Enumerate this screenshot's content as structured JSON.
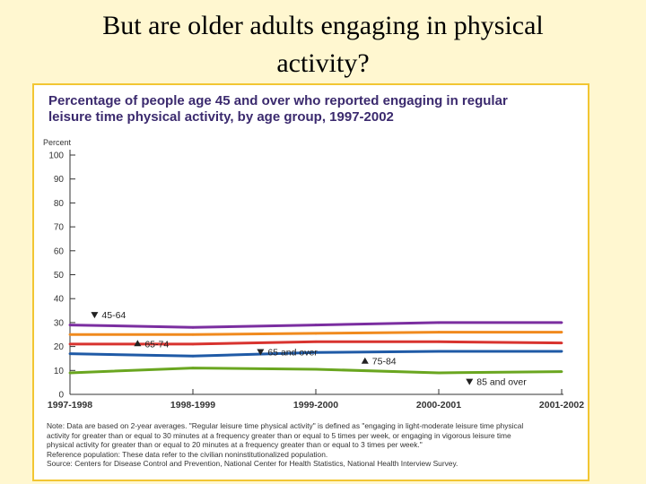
{
  "slide": {
    "title_line1": "But are older adults engaging in physical",
    "title_line2": "activity?"
  },
  "chart_data": {
    "type": "line",
    "title_line1": "Percentage of people age 45 and over who reported engaging in regular",
    "title_line2": "leisure time physical activity, by age group, 1997-2002",
    "ylabel": "Percent",
    "xlabel": "",
    "ylim": [
      0,
      100
    ],
    "yticks": [
      0,
      10,
      20,
      30,
      40,
      50,
      60,
      70,
      80,
      90,
      100
    ],
    "categories": [
      "1997-1998",
      "1998-1999",
      "1999-2000",
      "2000-2001",
      "2001-2002"
    ],
    "series": [
      {
        "name": "45-64",
        "color": "#7b2ea0",
        "values": [
          29,
          28,
          29,
          30,
          30
        ]
      },
      {
        "name": "65-74",
        "color": "#f08a1e",
        "values": [
          25,
          25,
          25.5,
          26,
          26
        ]
      },
      {
        "name": "65 and over",
        "color": "#d8332f",
        "values": [
          21,
          21,
          22,
          22,
          21.5
        ]
      },
      {
        "name": "75-84",
        "color": "#1f5aa6",
        "values": [
          17,
          16,
          17.5,
          18,
          18
        ]
      },
      {
        "name": "85 and over",
        "color": "#6aa620",
        "values": [
          9,
          11,
          10.5,
          9,
          9.5
        ]
      }
    ],
    "legend": "inline labels",
    "grid": false
  },
  "notes": {
    "line1": "Note: Data are based on 2-year averages. \"Regular leisure time physical activity\" is defined as \"engaging in light-moderate leisure time physical",
    "line2": "activity for greater than or equal to 30 minutes at a frequency greater than or equal to 5 times per week, or engaging in vigorous leisure time",
    "line3": "physical activity for greater than or equal to 20 minutes at a frequency greater than or equal to 3 times per week.\"",
    "line4": "Reference population: These data refer to the civilian noninstitutionalized population.",
    "line5": "Source: Centers for Disease Control and Prevention, National Center for Health Statistics, National Health Interview Survey."
  },
  "colors": {
    "background": "#fff7d0",
    "panel_border": "#f2c633",
    "title": "#3b2a6e"
  }
}
